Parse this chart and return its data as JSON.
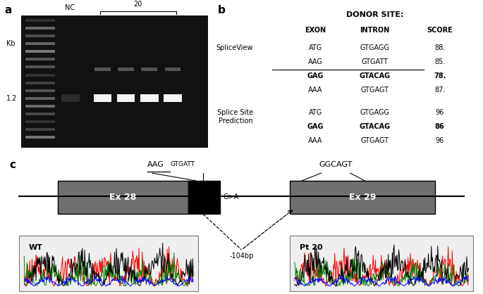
{
  "panel_a_label": "a",
  "panel_b_label": "b",
  "panel_c_label": "c",
  "panel_b": {
    "title": "DONOR SITE:",
    "header": [
      "EXON",
      "INTRON",
      "SCORE"
    ],
    "section1_label": "SpliceView",
    "section1_rows": [
      {
        "exon": "ATG",
        "intron": "GTGAGG",
        "score": "88.",
        "bold": false,
        "underline": false
      },
      {
        "exon": "AAG",
        "intron": "GTGATT",
        "score": "85.",
        "bold": false,
        "underline": true
      },
      {
        "exon": "GAG",
        "intron": "GTACAG",
        "score": "78.",
        "bold": true,
        "underline": false
      },
      {
        "exon": "AAA",
        "intron": "GTGAGT",
        "score": "87.",
        "bold": false,
        "underline": false
      }
    ],
    "section2_label": "Splice Site\nPrediction",
    "section2_rows": [
      {
        "exon": "ATG",
        "intron": "GTGAGG",
        "score": "96",
        "bold": false,
        "underline": false
      },
      {
        "exon": "GAG",
        "intron": "GTACAG",
        "score": "86",
        "bold": true,
        "underline": false
      },
      {
        "exon": "AAA",
        "intron": "GTGAGT",
        "score": "96",
        "bold": false,
        "underline": false
      }
    ]
  },
  "panel_c": {
    "label_aag": "AAG",
    "label_gtgatt": "GTGATT",
    "label_ggcagt": "GGCAGT",
    "label_gtoA": "G>A",
    "label_ex28": "Ex 28",
    "label_ex29": "Ex 29",
    "label_104bp": "-104bp",
    "label_wt": "WT",
    "label_pt20": "Pt 20"
  },
  "background_color": "#ffffff"
}
